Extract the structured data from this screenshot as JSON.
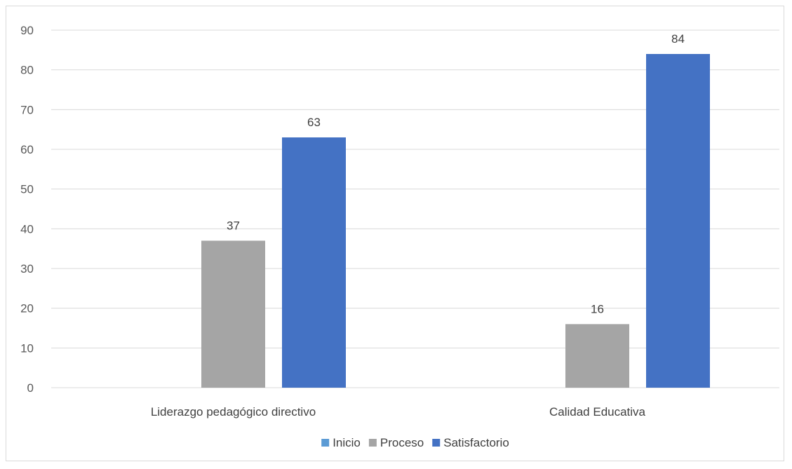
{
  "chart_data": {
    "type": "bar",
    "categories": [
      "Liderazgo pedagógico directivo",
      "Calidad Educativa"
    ],
    "series": [
      {
        "name": "Inicio",
        "values": [
          0,
          0
        ],
        "color": "#5B9BD5",
        "show_labels": [
          false,
          false
        ]
      },
      {
        "name": "Proceso",
        "values": [
          37,
          16
        ],
        "color": "#A5A5A5",
        "show_labels": [
          true,
          true
        ]
      },
      {
        "name": "Satisfactorio",
        "values": [
          63,
          84
        ],
        "color": "#4472C4",
        "show_labels": [
          true,
          true
        ]
      }
    ],
    "ylim": [
      0,
      90
    ],
    "yticks": [
      "0",
      "10",
      "20",
      "30",
      "40",
      "50",
      "60",
      "70",
      "80",
      "90"
    ],
    "grid": true,
    "legend_position": "bottom",
    "title": "",
    "xlabel": "",
    "ylabel": ""
  }
}
